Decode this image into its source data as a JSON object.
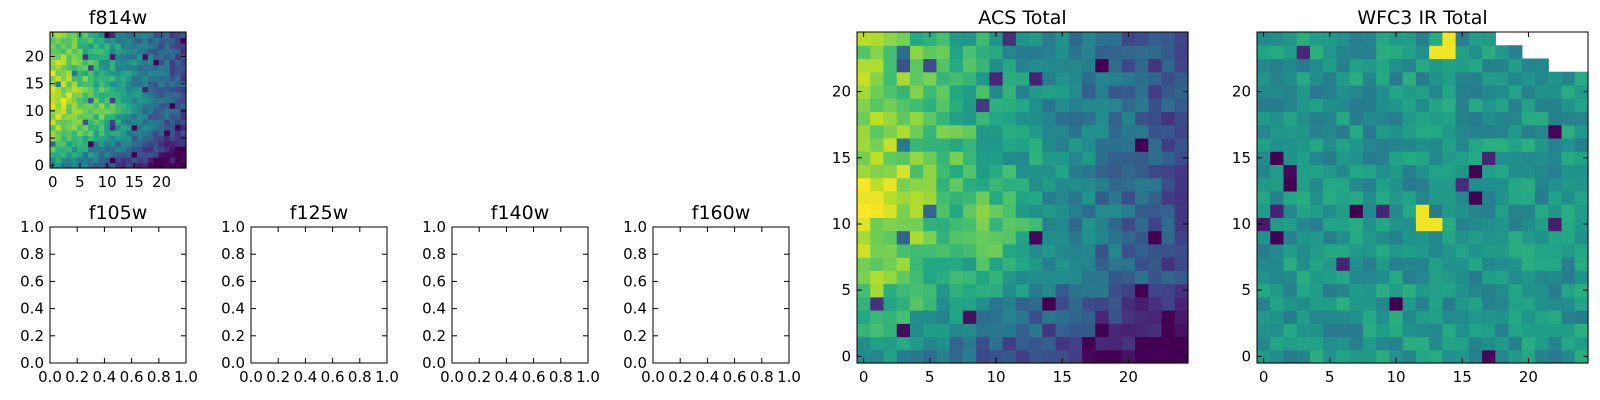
{
  "chart_data": [
    {
      "id": "f814w",
      "type": "heatmap",
      "title": "f814w",
      "cols": 25,
      "rows": 25,
      "xlim": [
        -0.5,
        24.5
      ],
      "ylim": [
        -0.5,
        24.5
      ],
      "xticks": [
        0,
        5,
        10,
        15,
        20
      ],
      "yticks": [
        0,
        5,
        10,
        15,
        20
      ],
      "colormap": "viridis",
      "values": "procedural-estimate"
    },
    {
      "id": "f105w",
      "type": "empty",
      "title": "f105w",
      "xlim": [
        0,
        1
      ],
      "ylim": [
        0,
        1
      ],
      "xticks": [
        "0.0",
        "0.2",
        "0.4",
        "0.6",
        "0.8",
        "1.0"
      ],
      "yticks": [
        "0.0",
        "0.2",
        "0.4",
        "0.6",
        "0.8",
        "1.0"
      ]
    },
    {
      "id": "f125w",
      "type": "empty",
      "title": "f125w",
      "xlim": [
        0,
        1
      ],
      "ylim": [
        0,
        1
      ],
      "xticks": [
        "0.0",
        "0.2",
        "0.4",
        "0.6",
        "0.8",
        "1.0"
      ],
      "yticks": [
        "0.0",
        "0.2",
        "0.4",
        "0.6",
        "0.8",
        "1.0"
      ]
    },
    {
      "id": "f140w",
      "type": "empty",
      "title": "f140w",
      "xlim": [
        0,
        1
      ],
      "ylim": [
        0,
        1
      ],
      "xticks": [
        "0.0",
        "0.2",
        "0.4",
        "0.6",
        "0.8",
        "1.0"
      ],
      "yticks": [
        "0.0",
        "0.2",
        "0.4",
        "0.6",
        "0.8",
        "1.0"
      ]
    },
    {
      "id": "f160w",
      "type": "empty",
      "title": "f160w",
      "xlim": [
        0,
        1
      ],
      "ylim": [
        0,
        1
      ],
      "xticks": [
        "0.0",
        "0.2",
        "0.4",
        "0.6",
        "0.8",
        "1.0"
      ],
      "yticks": [
        "0.0",
        "0.2",
        "0.4",
        "0.6",
        "0.8",
        "1.0"
      ]
    },
    {
      "id": "acs_total",
      "type": "heatmap",
      "title": "ACS Total",
      "cols": 25,
      "rows": 25,
      "xlim": [
        -0.5,
        24.5
      ],
      "ylim": [
        -0.5,
        24.5
      ],
      "xticks": [
        0,
        5,
        10,
        15,
        20
      ],
      "yticks": [
        0,
        5,
        10,
        15,
        20
      ],
      "colormap": "viridis",
      "values": "procedural-estimate"
    },
    {
      "id": "wfc3_ir_total",
      "type": "heatmap",
      "title": "WFC3 IR Total",
      "cols": 25,
      "rows": 25,
      "xlim": [
        -0.5,
        24.5
      ],
      "ylim": [
        -0.5,
        24.5
      ],
      "xticks": [
        0,
        5,
        10,
        15,
        20
      ],
      "yticks": [
        0,
        5,
        10,
        15,
        20
      ],
      "colormap": "viridis",
      "values": "procedural-estimate",
      "bright_spots": [
        [
          12,
          10
        ],
        [
          13,
          10
        ],
        [
          12,
          11
        ],
        [
          14,
          23
        ],
        [
          13,
          23
        ],
        [
          14,
          24
        ]
      ],
      "masked_white_cells_top_right": true
    }
  ]
}
